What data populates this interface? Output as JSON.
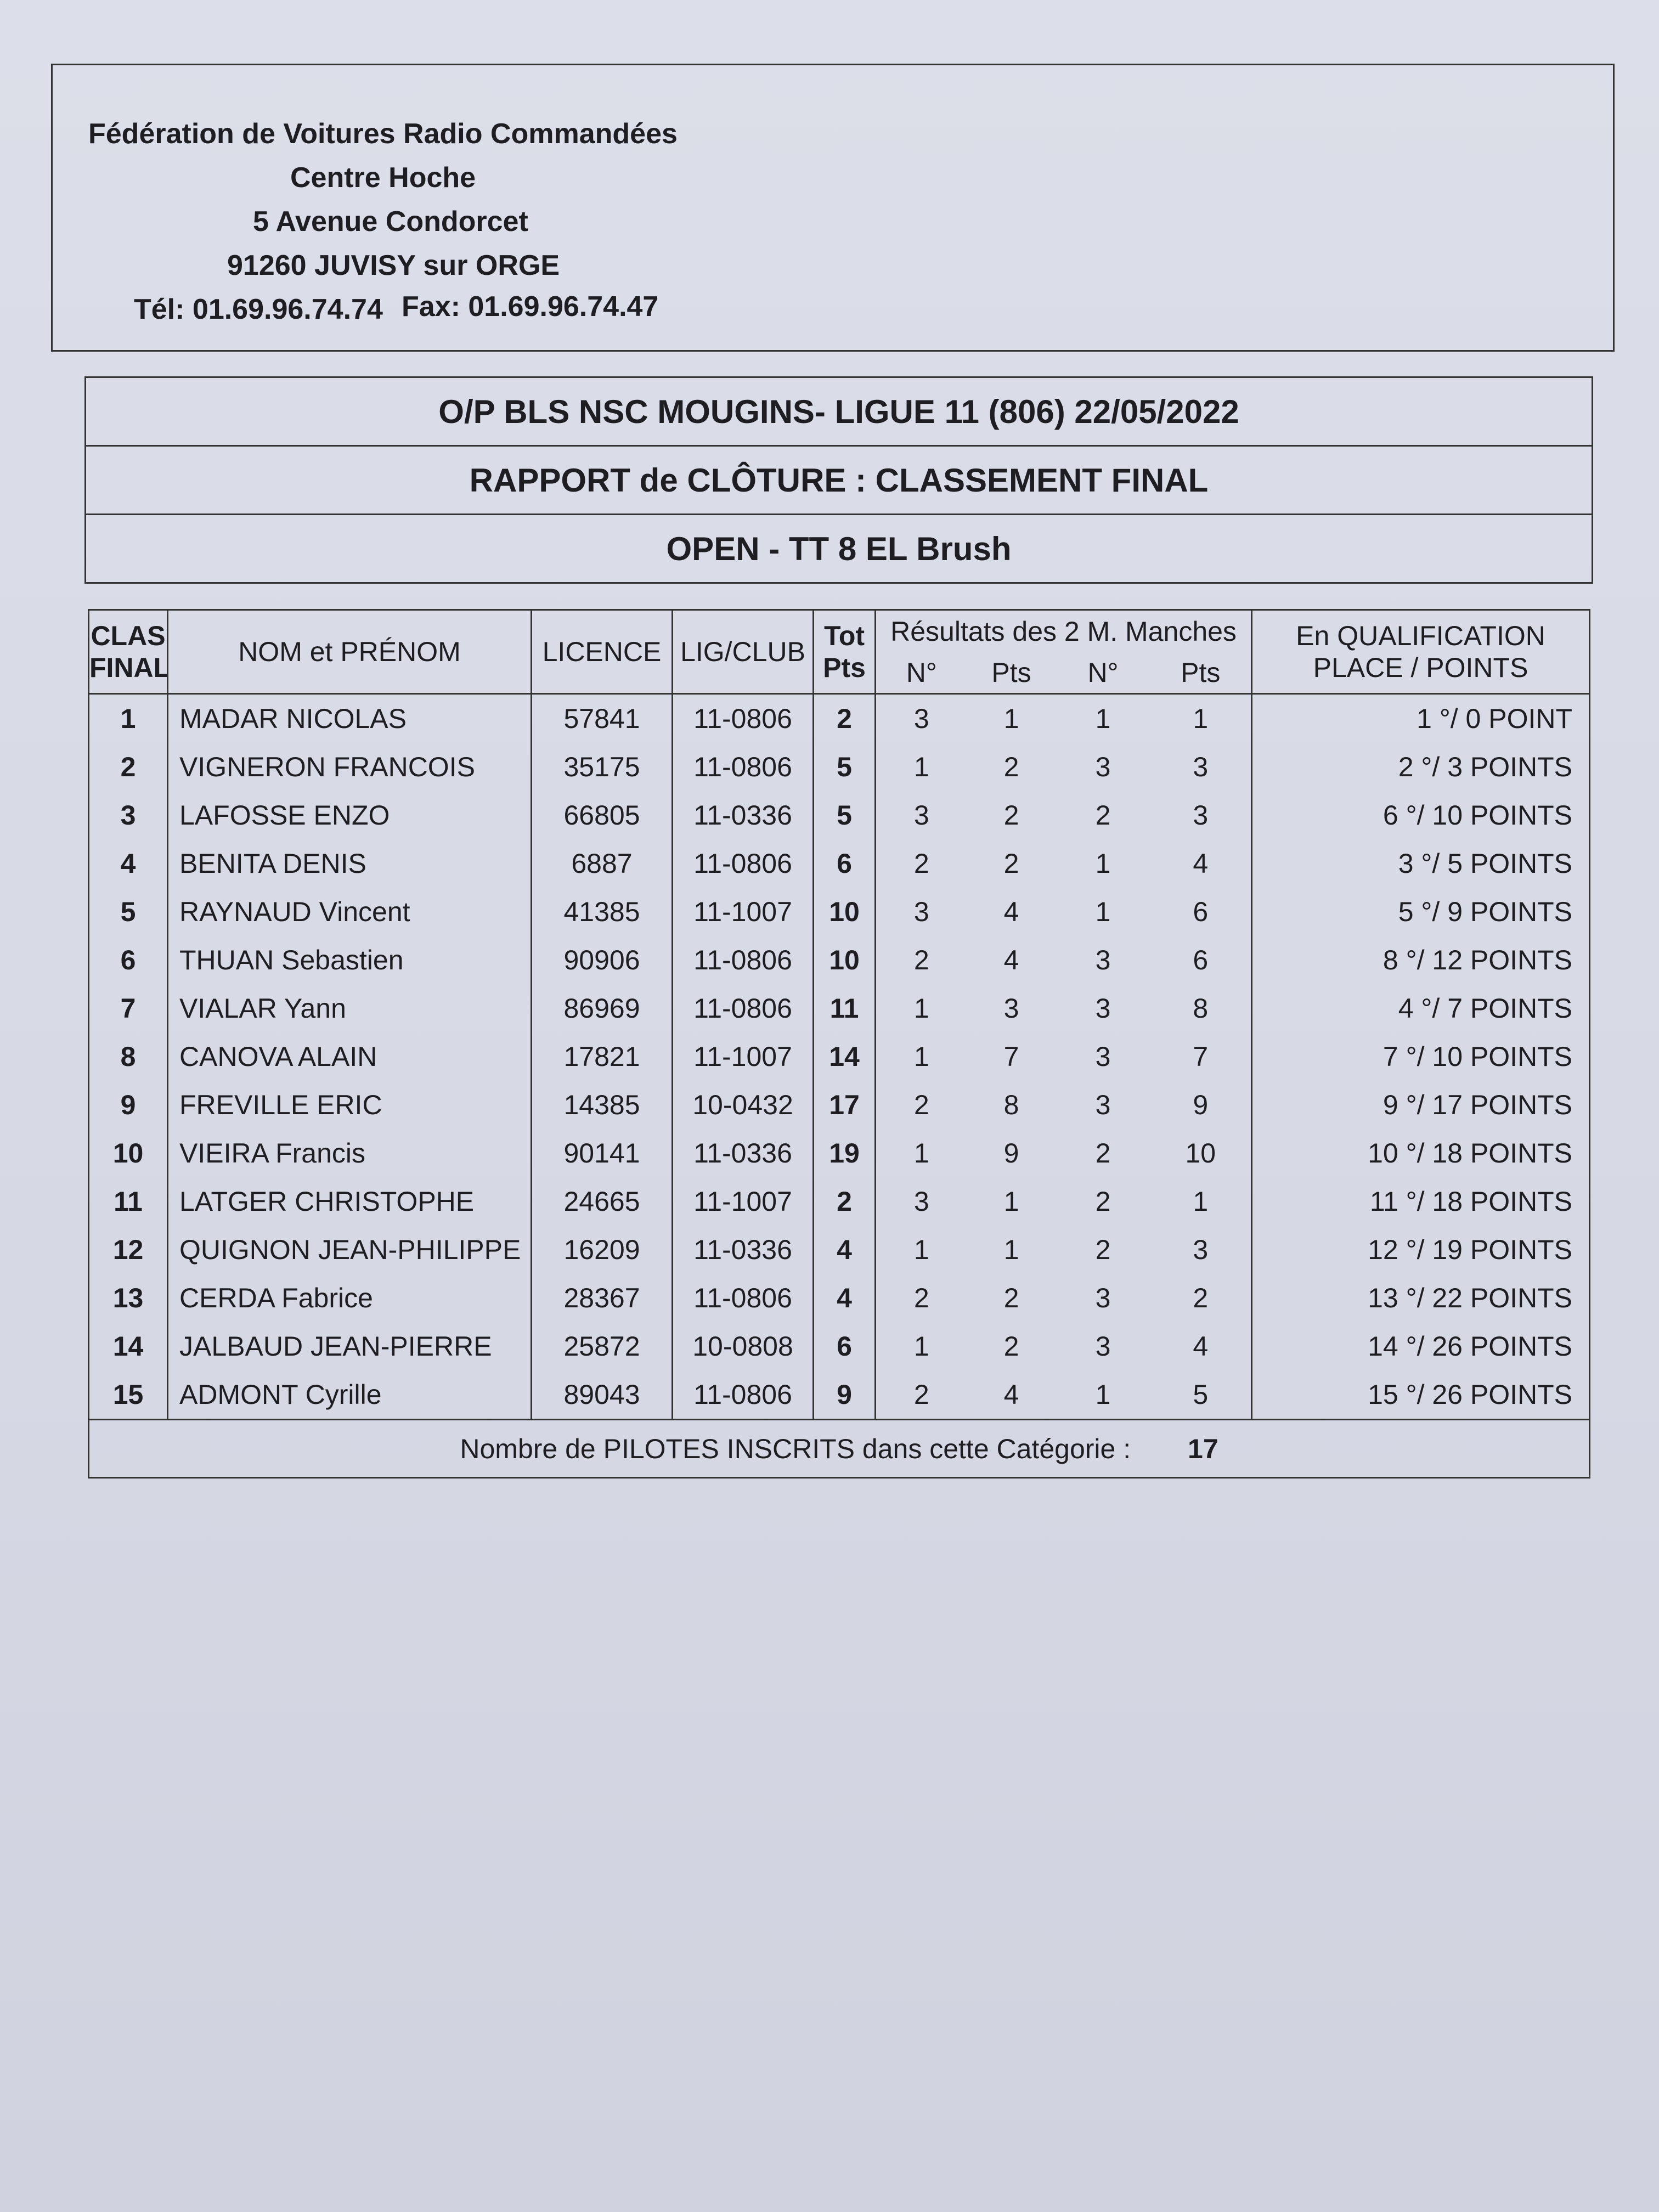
{
  "federation": {
    "name": "Fédération de Voitures Radio Commandées",
    "center": "Centre Hoche",
    "street": "5 Avenue Condorcet",
    "city": "91260 JUVISY sur ORGE",
    "tel": "Tél: 01.69.96.74.74",
    "fax": "Fax: 01.69.96.74.47"
  },
  "titles": {
    "event": "O/P BLS  NSC MOUGINS- LIGUE 11 (806) 22/05/2022",
    "report": "RAPPORT de CLÔTURE : CLASSEMENT FINAL",
    "category": "OPEN  -  TT 8 EL Brush"
  },
  "table": {
    "headers": {
      "clas_1": "CLAS",
      "clas_2": "FINAL",
      "name": "NOM et PRÉNOM",
      "licence": "LICENCE",
      "club": "LIG/CLUB",
      "tot_1": "Tot",
      "tot_2": "Pts",
      "results": "Résultats des 2 M. Manches",
      "n1": "N°",
      "p1": "Pts",
      "n2": "N°",
      "p2": "Pts",
      "qual_1": "En QUALIFICATION",
      "qual_2": "PLACE  /  POINTS"
    },
    "rows": [
      {
        "rank": "1",
        "name": "MADAR NICOLAS",
        "licence": "57841",
        "club": "11-0806",
        "tot": "2",
        "n1": "3",
        "p1": "1",
        "n2": "1",
        "p2": "1",
        "qual": "1 °/   0 POINT"
      },
      {
        "rank": "2",
        "name": "VIGNERON FRANCOIS",
        "licence": "35175",
        "club": "11-0806",
        "tot": "5",
        "n1": "1",
        "p1": "2",
        "n2": "3",
        "p2": "3",
        "qual": "2 °/   3 POINTS"
      },
      {
        "rank": "3",
        "name": "LAFOSSE ENZO",
        "licence": "66805",
        "club": "11-0336",
        "tot": "5",
        "n1": "3",
        "p1": "2",
        "n2": "2",
        "p2": "3",
        "qual": "6 °/  10 POINTS"
      },
      {
        "rank": "4",
        "name": "BENITA DENIS",
        "licence": "6887",
        "club": "11-0806",
        "tot": "6",
        "n1": "2",
        "p1": "2",
        "n2": "1",
        "p2": "4",
        "qual": "3 °/   5 POINTS"
      },
      {
        "rank": "5",
        "name": "RAYNAUD Vincent",
        "licence": "41385",
        "club": "11-1007",
        "tot": "10",
        "n1": "3",
        "p1": "4",
        "n2": "1",
        "p2": "6",
        "qual": "5 °/   9 POINTS"
      },
      {
        "rank": "6",
        "name": "THUAN Sebastien",
        "licence": "90906",
        "club": "11-0806",
        "tot": "10",
        "n1": "2",
        "p1": "4",
        "n2": "3",
        "p2": "6",
        "qual": "8 °/  12 POINTS"
      },
      {
        "rank": "7",
        "name": "VIALAR Yann",
        "licence": "86969",
        "club": "11-0806",
        "tot": "11",
        "n1": "1",
        "p1": "3",
        "n2": "3",
        "p2": "8",
        "qual": "4 °/   7 POINTS"
      },
      {
        "rank": "8",
        "name": "CANOVA ALAIN",
        "licence": "17821",
        "club": "11-1007",
        "tot": "14",
        "n1": "1",
        "p1": "7",
        "n2": "3",
        "p2": "7",
        "qual": "7 °/  10 POINTS"
      },
      {
        "rank": "9",
        "name": "FREVILLE ERIC",
        "licence": "14385",
        "club": "10-0432",
        "tot": "17",
        "n1": "2",
        "p1": "8",
        "n2": "3",
        "p2": "9",
        "qual": "9 °/  17 POINTS"
      },
      {
        "rank": "10",
        "name": "VIEIRA Francis",
        "licence": "90141",
        "club": "11-0336",
        "tot": "19",
        "n1": "1",
        "p1": "9",
        "n2": "2",
        "p2": "10",
        "qual": "10 °/  18 POINTS"
      },
      {
        "rank": "11",
        "name": "LATGER CHRISTOPHE",
        "licence": "24665",
        "club": "11-1007",
        "tot": "2",
        "n1": "3",
        "p1": "1",
        "n2": "2",
        "p2": "1",
        "qual": "11 °/  18 POINTS"
      },
      {
        "rank": "12",
        "name": "QUIGNON JEAN-PHILIPPE",
        "licence": "16209",
        "club": "11-0336",
        "tot": "4",
        "n1": "1",
        "p1": "1",
        "n2": "2",
        "p2": "3",
        "qual": "12 °/  19 POINTS"
      },
      {
        "rank": "13",
        "name": "CERDA Fabrice",
        "licence": "28367",
        "club": "11-0806",
        "tot": "4",
        "n1": "2",
        "p1": "2",
        "n2": "3",
        "p2": "2",
        "qual": "13 °/  22 POINTS"
      },
      {
        "rank": "14",
        "name": "JALBAUD JEAN-PIERRE",
        "licence": "25872",
        "club": "10-0808",
        "tot": "6",
        "n1": "1",
        "p1": "2",
        "n2": "3",
        "p2": "4",
        "qual": "14 °/  26 POINTS"
      },
      {
        "rank": "15",
        "name": "ADMONT Cyrille",
        "licence": "89043",
        "club": "11-0806",
        "tot": "9",
        "n1": "2",
        "p1": "4",
        "n2": "1",
        "p2": "5",
        "qual": "15 °/  26 POINTS"
      }
    ],
    "footer_label": "Nombre de PILOTES INSCRITS dans cette Catégorie :",
    "footer_count": "17"
  }
}
